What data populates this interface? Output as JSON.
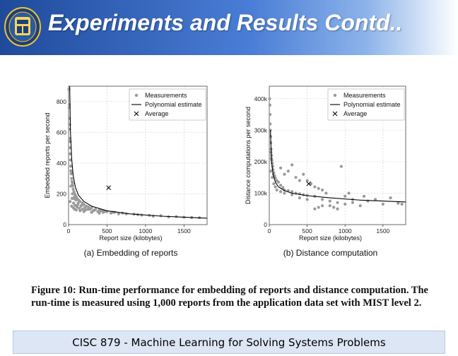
{
  "slide": {
    "title": "Experiments and Results Contd..",
    "footer": "CISC 879 - Machine Learning for Solving Systems Problems",
    "caption_label": "Figure 10:",
    "caption_line1": "Run-time performance for embedding of reports and distance computation. The",
    "caption_line2": "run-time is measured using 1,000 reports from the application data set with MIST level 2."
  },
  "colors": {
    "header_dark": "#1f4a9c",
    "header_light": "#8cb3ea",
    "footer_bg": "#dce6f5",
    "points": "#9a9a9a"
  },
  "chart_data": [
    {
      "type": "scatter",
      "subtitle": "(a) Embedding of reports",
      "xlabel": "Report size (kilobytes)",
      "ylabel": "Embedded reports per second",
      "xlim": [
        0,
        1800
      ],
      "ylim": [
        0,
        900
      ],
      "xticks": [
        "0",
        "500",
        "1000",
        "1500"
      ],
      "yticks": [
        "0",
        "200",
        "400",
        "600",
        "800"
      ],
      "legend": [
        "Measurements",
        "Polynomial estimate",
        "Average"
      ],
      "legend_position": "top-right",
      "average": {
        "x": 520,
        "y": 240
      },
      "polynomial": [
        [
          15,
          900
        ],
        [
          25,
          600
        ],
        [
          40,
          430
        ],
        [
          60,
          320
        ],
        [
          90,
          240
        ],
        [
          130,
          190
        ],
        [
          200,
          150
        ],
        [
          300,
          120
        ],
        [
          500,
          90
        ],
        [
          800,
          70
        ],
        [
          1200,
          55
        ],
        [
          1800,
          42
        ]
      ],
      "measurements": [
        [
          5,
          880
        ],
        [
          8,
          760
        ],
        [
          10,
          690
        ],
        [
          12,
          620
        ],
        [
          14,
          560
        ],
        [
          18,
          500
        ],
        [
          20,
          460
        ],
        [
          25,
          420
        ],
        [
          28,
          380
        ],
        [
          30,
          350
        ],
        [
          35,
          330
        ],
        [
          40,
          300
        ],
        [
          45,
          280
        ],
        [
          50,
          260
        ],
        [
          55,
          250
        ],
        [
          60,
          230
        ],
        [
          70,
          215
        ],
        [
          80,
          200
        ],
        [
          90,
          190
        ],
        [
          100,
          180
        ],
        [
          110,
          170
        ],
        [
          130,
          160
        ],
        [
          150,
          150
        ],
        [
          180,
          140
        ],
        [
          200,
          130
        ],
        [
          230,
          120
        ],
        [
          260,
          115
        ],
        [
          300,
          110
        ],
        [
          350,
          100
        ],
        [
          400,
          95
        ],
        [
          450,
          90
        ],
        [
          500,
          85
        ],
        [
          600,
          80
        ],
        [
          700,
          75
        ],
        [
          900,
          65
        ],
        [
          1100,
          55
        ],
        [
          1300,
          50
        ],
        [
          1500,
          48
        ],
        [
          1700,
          45
        ],
        [
          20,
          150
        ],
        [
          40,
          120
        ],
        [
          60,
          110
        ],
        [
          80,
          100
        ],
        [
          100,
          95
        ],
        [
          150,
          90
        ],
        [
          200,
          85
        ],
        [
          300,
          80
        ],
        [
          400,
          75
        ],
        [
          30,
          250
        ],
        [
          50,
          200
        ],
        [
          70,
          170
        ],
        [
          120,
          130
        ],
        [
          160,
          120
        ],
        [
          250,
          100
        ],
        [
          45,
          170
        ],
        [
          65,
          140
        ],
        [
          85,
          125
        ],
        [
          110,
          115
        ],
        [
          140,
          105
        ],
        [
          180,
          100
        ],
        [
          220,
          95
        ],
        [
          320,
          90
        ],
        [
          380,
          85
        ],
        [
          450,
          80
        ],
        [
          550,
          75
        ],
        [
          650,
          70
        ],
        [
          10,
          780
        ],
        [
          15,
          650
        ],
        [
          22,
          540
        ],
        [
          33,
          380
        ],
        [
          38,
          340
        ],
        [
          52,
          270
        ],
        [
          75,
          180
        ],
        [
          95,
          160
        ],
        [
          125,
          140
        ],
        [
          170,
          125
        ],
        [
          210,
          110
        ],
        [
          280,
          100
        ],
        [
          340,
          95
        ],
        [
          420,
          90
        ],
        [
          480,
          85
        ],
        [
          580,
          80
        ],
        [
          750,
          70
        ],
        [
          850,
          68
        ],
        [
          950,
          62
        ],
        [
          1050,
          60
        ],
        [
          1200,
          58
        ],
        [
          1400,
          52
        ],
        [
          1600,
          46
        ]
      ]
    },
    {
      "type": "scatter",
      "subtitle": "(b) Distance computation",
      "xlabel": "Report size (kilobytes)",
      "ylabel": "Distance computations per second",
      "xlim": [
        0,
        1800
      ],
      "ylim": [
        0,
        440000
      ],
      "xticks": [
        "0",
        "500",
        "1000",
        "1500"
      ],
      "yticks": [
        "0",
        "100k",
        "200k",
        "300k",
        "400k"
      ],
      "legend": [
        "Measurements",
        "Polynomial estimate",
        "Average"
      ],
      "legend_position": "top-right",
      "average": {
        "x": 520,
        "y": 130000
      },
      "polynomial": [
        [
          15,
          300000
        ],
        [
          30,
          200000
        ],
        [
          50,
          160000
        ],
        [
          80,
          135000
        ],
        [
          120,
          120000
        ],
        [
          200,
          108000
        ],
        [
          300,
          100000
        ],
        [
          500,
          92000
        ],
        [
          800,
          85000
        ],
        [
          1200,
          78000
        ],
        [
          1800,
          72000
        ]
      ],
      "measurements": [
        [
          5,
          400000
        ],
        [
          8,
          380000
        ],
        [
          10,
          350000
        ],
        [
          12,
          320000
        ],
        [
          15,
          300000
        ],
        [
          18,
          280000
        ],
        [
          20,
          260000
        ],
        [
          25,
          240000
        ],
        [
          30,
          220000
        ],
        [
          35,
          205000
        ],
        [
          40,
          195000
        ],
        [
          45,
          185000
        ],
        [
          50,
          175000
        ],
        [
          60,
          165000
        ],
        [
          70,
          155000
        ],
        [
          80,
          148000
        ],
        [
          100,
          140000
        ],
        [
          120,
          135000
        ],
        [
          150,
          125000
        ],
        [
          180,
          118000
        ],
        [
          200,
          110000
        ],
        [
          250,
          108000
        ],
        [
          300,
          105000
        ],
        [
          350,
          100000
        ],
        [
          400,
          98000
        ],
        [
          450,
          95000
        ],
        [
          500,
          93000
        ],
        [
          600,
          90000
        ],
        [
          700,
          80000
        ],
        [
          800,
          75000
        ],
        [
          900,
          70000
        ],
        [
          1000,
          65000
        ],
        [
          1100,
          70000
        ],
        [
          1200,
          60000
        ],
        [
          1300,
          75000
        ],
        [
          1500,
          65000
        ],
        [
          1700,
          68000
        ],
        [
          20,
          170000
        ],
        [
          40,
          150000
        ],
        [
          60,
          130000
        ],
        [
          80,
          120000
        ],
        [
          100,
          110000
        ],
        [
          150,
          105000
        ],
        [
          200,
          100000
        ],
        [
          300,
          95000
        ],
        [
          400,
          85000
        ],
        [
          500,
          80000
        ],
        [
          150,
          180000
        ],
        [
          200,
          160000
        ],
        [
          250,
          170000
        ],
        [
          300,
          190000
        ],
        [
          350,
          150000
        ],
        [
          400,
          140000
        ],
        [
          450,
          160000
        ],
        [
          500,
          140000
        ],
        [
          550,
          130000
        ],
        [
          600,
          120000
        ],
        [
          650,
          115000
        ],
        [
          700,
          110000
        ],
        [
          750,
          100000
        ],
        [
          950,
          185000
        ],
        [
          1000,
          90000
        ],
        [
          1050,
          100000
        ],
        [
          1100,
          80000
        ],
        [
          800,
          60000
        ],
        [
          850,
          55000
        ],
        [
          900,
          50000
        ],
        [
          600,
          50000
        ],
        [
          650,
          55000
        ],
        [
          700,
          60000
        ],
        [
          1400,
          80000
        ],
        [
          1600,
          85000
        ],
        [
          1750,
          65000
        ],
        [
          1250,
          90000
        ],
        [
          10,
          300000
        ],
        [
          14,
          260000
        ],
        [
          22,
          230000
        ],
        [
          28,
          210000
        ],
        [
          55,
          160000
        ]
      ]
    }
  ]
}
